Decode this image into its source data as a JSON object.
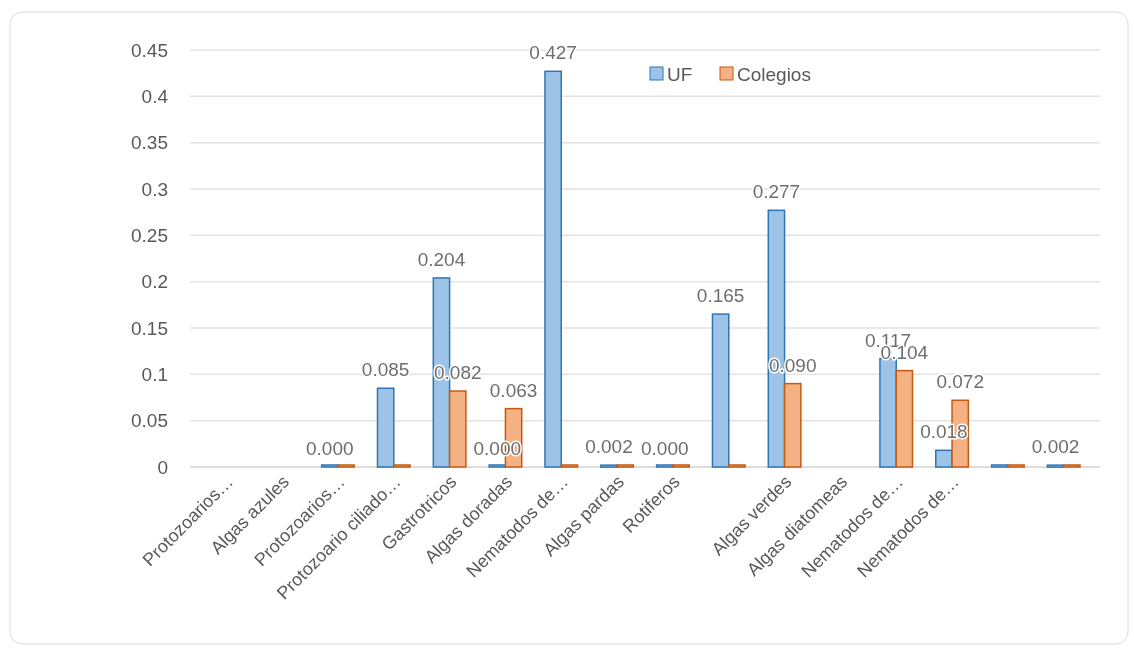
{
  "chart_data": {
    "type": "bar",
    "categories": [
      "Protozoarios…",
      "Algas azules",
      "Protozoarios…",
      "Protozoario ciliado…",
      "Gastrotricos",
      "Algas doradas",
      "Nematodos de…",
      "Algas pardas",
      "Rotiferos",
      null,
      "Algas verdes",
      "Algas diatomeas",
      "Nematodos de…",
      "Nematodos de…",
      null,
      null
    ],
    "series": [
      {
        "name": "UF",
        "color": "#9dc3e6",
        "values": [
          null,
          null,
          0,
          0.085,
          0.204,
          0,
          0.427,
          0.002,
          0,
          0.165,
          0.277,
          null,
          0.117,
          0.018,
          0,
          0.002
        ],
        "value_labels": [
          null,
          null,
          "0.000",
          "0.085",
          "0.204",
          "0.000",
          "0.427",
          "0.002",
          "0.000",
          "0.165",
          "0.277",
          null,
          "0.117",
          "0.018",
          null,
          "0.002"
        ]
      },
      {
        "name": "Colegios",
        "color": "#f4b183",
        "values": [
          null,
          null,
          0,
          0,
          0.082,
          0.063,
          0,
          0,
          0,
          0,
          0.09,
          null,
          0.104,
          0.072,
          0,
          0
        ],
        "value_labels": [
          null,
          null,
          null,
          null,
          "0.082",
          "0.063",
          null,
          null,
          null,
          null,
          "0.090",
          null,
          "0.104",
          "0.072",
          null,
          null
        ]
      }
    ],
    "ylim": [
      0,
      0.45
    ],
    "yticks": [
      {
        "value": 0,
        "label": "0"
      },
      0.05,
      {
        "value": 0.1,
        "label": "0.1"
      },
      0.15,
      {
        "value": 0.2,
        "label": "0.2"
      },
      0.25,
      {
        "value": 0.3,
        "label": "0.3"
      },
      0.35,
      {
        "value": 0.4,
        "label": "0.4"
      },
      0.45
    ],
    "grid": "y",
    "legend": "top"
  }
}
